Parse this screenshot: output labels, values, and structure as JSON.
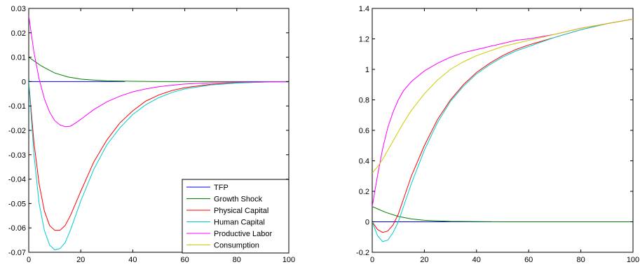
{
  "chart_data": [
    {
      "type": "line",
      "title": "",
      "xlabel": "",
      "ylabel": "",
      "xlim": [
        0,
        100
      ],
      "ylim": [
        -0.07,
        0.03
      ],
      "xticks": [
        0,
        20,
        40,
        60,
        80,
        100
      ],
      "xtick_labels": [
        "0",
        "20",
        "40",
        "60",
        "80",
        "100"
      ],
      "yticks": [
        0.03,
        0.02,
        0.01,
        0,
        -0.01,
        -0.02,
        -0.03,
        -0.04,
        -0.05,
        -0.06,
        -0.07
      ],
      "ytick_labels": [
        "0.03",
        "0.02",
        "0.01",
        "0",
        "-0.01",
        "-0.02",
        "-0.03",
        "-0.04",
        "-0.05",
        "-0.06",
        "-0.07"
      ],
      "grid": false,
      "legend": "bottom-right",
      "series": [
        {
          "name": "TFP",
          "color": "#0000ff",
          "x": [
            0,
            10,
            20,
            30,
            37
          ],
          "y": [
            0,
            0,
            0,
            0,
            0
          ]
        },
        {
          "name": "Growth Shock",
          "color": "#008000",
          "x": [
            0,
            2,
            5,
            10,
            15,
            20,
            25,
            30,
            40,
            50,
            60,
            80,
            100
          ],
          "y": [
            0.01,
            0.0085,
            0.0063,
            0.0035,
            0.0019,
            0.001,
            0.0006,
            0.0003,
            0.0001,
            0,
            0,
            0,
            0
          ]
        },
        {
          "name": "Physical Capital",
          "color": "#ff0000",
          "x": [
            0,
            2,
            4,
            6,
            8,
            10,
            12,
            14,
            16,
            18,
            20,
            25,
            30,
            35,
            40,
            45,
            50,
            55,
            60,
            70,
            80,
            90,
            100
          ],
          "y": [
            0,
            -0.025,
            -0.042,
            -0.053,
            -0.059,
            -0.061,
            -0.061,
            -0.059,
            -0.055,
            -0.05,
            -0.045,
            -0.033,
            -0.024,
            -0.017,
            -0.012,
            -0.008,
            -0.0055,
            -0.0037,
            -0.0025,
            -0.0011,
            -0.0005,
            -0.0002,
            -0.0001
          ]
        },
        {
          "name": "Human Capital",
          "color": "#00cccc",
          "x": [
            0,
            2,
            4,
            6,
            8,
            10,
            12,
            14,
            16,
            18,
            20,
            25,
            30,
            35,
            40,
            45,
            50,
            55,
            60,
            70,
            80,
            90,
            100
          ],
          "y": [
            0,
            -0.03,
            -0.05,
            -0.061,
            -0.067,
            -0.069,
            -0.0685,
            -0.066,
            -0.061,
            -0.055,
            -0.049,
            -0.036,
            -0.026,
            -0.019,
            -0.0135,
            -0.0095,
            -0.0066,
            -0.0045,
            -0.003,
            -0.0014,
            -0.0006,
            -0.0002,
            -0.0001
          ]
        },
        {
          "name": "Productive Labor",
          "color": "#ff00ff",
          "x": [
            0,
            2,
            4,
            6,
            8,
            10,
            12,
            14,
            16,
            18,
            20,
            25,
            30,
            35,
            40,
            45,
            50,
            55,
            60,
            70,
            80,
            90,
            100
          ],
          "y": [
            0.027,
            0.012,
            0.001,
            -0.007,
            -0.0125,
            -0.016,
            -0.0178,
            -0.0185,
            -0.0183,
            -0.017,
            -0.0155,
            -0.0115,
            -0.0083,
            -0.006,
            -0.0042,
            -0.003,
            -0.0021,
            -0.0015,
            -0.001,
            -0.0005,
            -0.0003,
            -0.0001,
            0
          ]
        },
        {
          "name": "Consumption",
          "color": "#cccc00",
          "x": [],
          "y": []
        }
      ]
    },
    {
      "type": "line",
      "title": "",
      "xlabel": "",
      "ylabel": "",
      "xlim": [
        0,
        100
      ],
      "ylim": [
        -0.2,
        1.4
      ],
      "xticks": [
        0,
        20,
        40,
        60,
        80,
        100
      ],
      "xtick_labels": [
        "0",
        "20",
        "40",
        "60",
        "80",
        "100"
      ],
      "yticks": [
        1.4,
        1.2,
        1,
        0.8,
        0.6,
        0.4,
        0.2,
        0,
        -0.2
      ],
      "ytick_labels": [
        "1.4",
        "1.2",
        "1",
        "0.8",
        "0.6",
        "0.4",
        "0.2",
        "0",
        "-0.2"
      ],
      "grid": false,
      "legend": "none",
      "series": [
        {
          "name": "TFP",
          "color": "#0000ff",
          "x": [
            0,
            10,
            20,
            30,
            40,
            46
          ],
          "y": [
            0,
            0,
            0,
            0,
            0,
            0
          ]
        },
        {
          "name": "Growth Shock",
          "color": "#008000",
          "x": [
            0,
            2,
            5,
            10,
            15,
            20,
            25,
            30,
            40,
            50,
            60,
            80,
            100
          ],
          "y": [
            0.1,
            0.085,
            0.063,
            0.035,
            0.019,
            0.01,
            0.006,
            0.003,
            0.001,
            0,
            0,
            0,
            0
          ]
        },
        {
          "name": "Physical Capital",
          "color": "#ff0000",
          "x": [
            0,
            2,
            4,
            6,
            8,
            10,
            12,
            15,
            20,
            25,
            30,
            35,
            40,
            45,
            50,
            55,
            60,
            70,
            80,
            90,
            100
          ],
          "y": [
            0,
            -0.05,
            -0.07,
            -0.06,
            -0.02,
            0.05,
            0.15,
            0.3,
            0.5,
            0.67,
            0.8,
            0.9,
            0.98,
            1.04,
            1.09,
            1.13,
            1.16,
            1.21,
            1.26,
            1.3,
            1.33
          ]
        },
        {
          "name": "Human Capital",
          "color": "#00cccc",
          "x": [
            0,
            2,
            4,
            6,
            8,
            10,
            12,
            15,
            20,
            25,
            30,
            35,
            40,
            45,
            50,
            55,
            60,
            70,
            80,
            90,
            100
          ],
          "y": [
            0,
            -0.09,
            -0.13,
            -0.12,
            -0.07,
            0,
            0.1,
            0.25,
            0.47,
            0.65,
            0.79,
            0.89,
            0.97,
            1.03,
            1.08,
            1.12,
            1.15,
            1.21,
            1.26,
            1.3,
            1.33
          ]
        },
        {
          "name": "Productive Labor",
          "color": "#ff00ff",
          "x": [
            0,
            2,
            4,
            6,
            8,
            10,
            12,
            15,
            20,
            25,
            30,
            35,
            40,
            45,
            50,
            55,
            60,
            70,
            80,
            90,
            100
          ],
          "y": [
            0.1,
            0.3,
            0.48,
            0.62,
            0.72,
            0.8,
            0.86,
            0.92,
            0.99,
            1.04,
            1.08,
            1.11,
            1.13,
            1.15,
            1.17,
            1.19,
            1.2,
            1.23,
            1.27,
            1.3,
            1.33
          ]
        },
        {
          "name": "Consumption",
          "color": "#cccc00",
          "x": [
            0,
            2,
            4,
            6,
            8,
            10,
            12,
            15,
            20,
            25,
            30,
            35,
            40,
            45,
            50,
            55,
            60,
            70,
            80,
            90,
            100
          ],
          "y": [
            0.32,
            0.36,
            0.41,
            0.47,
            0.53,
            0.59,
            0.65,
            0.73,
            0.84,
            0.93,
            1.0,
            1.05,
            1.09,
            1.12,
            1.15,
            1.17,
            1.19,
            1.23,
            1.27,
            1.3,
            1.33
          ]
        }
      ]
    }
  ]
}
